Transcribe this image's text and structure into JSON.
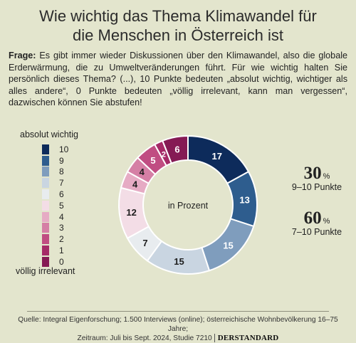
{
  "title_line1": "Wie wichtig das Thema Klimawandel für",
  "title_line2": "die Menschen in Österreich ist",
  "question_label": "Frage:",
  "question_text": " Es gibt immer wieder Diskussionen über den Klimawandel, also die globale Erderwärmung, die zu Umweltveränderungen führt. Für wie wichtig halten Sie persönlich dieses Thema? (...), 10 Punkte bedeuten „absolut wichtig, wichtiger als alles andere“, 0 Punkte bedeuten „völlig irrelevant, kann man vergessen“, dazwischen können Sie abstufen!",
  "legend": {
    "top_label": "absolut wichtig",
    "bottom_label": "völlig irrelevant",
    "items": [
      {
        "label": "10",
        "color": "#0d2b5b"
      },
      {
        "label": "9",
        "color": "#2e5d8e"
      },
      {
        "label": "8",
        "color": "#7f9dbd"
      },
      {
        "label": "7",
        "color": "#c9d5e1"
      },
      {
        "label": "6",
        "color": "#e8ecef"
      },
      {
        "label": "5",
        "color": "#f3dde6"
      },
      {
        "label": "4",
        "color": "#e6abc4"
      },
      {
        "label": "3",
        "color": "#d57fa5"
      },
      {
        "label": "2",
        "color": "#c04d82"
      },
      {
        "label": "1",
        "color": "#a52a67"
      },
      {
        "label": "0",
        "color": "#851a54"
      }
    ]
  },
  "chart_data": {
    "type": "pie",
    "center_label": "in Prozent",
    "categories": [
      "10",
      "9",
      "8",
      "7",
      "6",
      "5",
      "4",
      "3",
      "2",
      "1",
      "0"
    ],
    "values": [
      17,
      13,
      15,
      15,
      7,
      12,
      4,
      4,
      5,
      2,
      6
    ],
    "colors": [
      "#0d2b5b",
      "#2e5d8e",
      "#7f9dbd",
      "#c9d5e1",
      "#e8ecef",
      "#f3dde6",
      "#e6abc4",
      "#d57fa5",
      "#c04d82",
      "#a52a67",
      "#851a54"
    ],
    "label_colors": [
      "#ffffff",
      "#ffffff",
      "#ffffff",
      "#1e1e1e",
      "#1e1e1e",
      "#1e1e1e",
      "#1e1e1e",
      "#1e1e1e",
      "#ffffff",
      "#ffffff",
      "#ffffff"
    ]
  },
  "stats": [
    {
      "value": "30",
      "unit": "%",
      "label": "9–10 Punkte"
    },
    {
      "value": "60",
      "unit": "%",
      "label": "7–10 Punkte"
    }
  ],
  "source_line1": "Quelle: Integral Eigenforschung; 1.500 Interviews (online); österreichische Wohnbevölkerung 16–75 Jahre;",
  "source_line2": "Zeitraum: Juli bis Sept. 2024, Studie 7210",
  "brand": "DERSTANDARD"
}
